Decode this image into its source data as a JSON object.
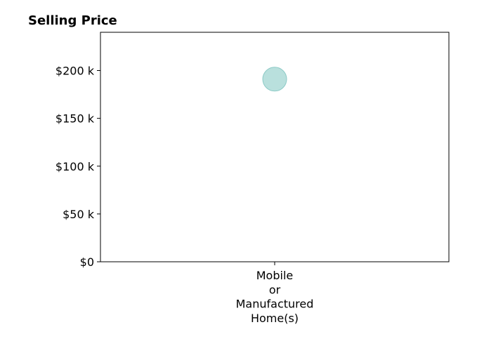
{
  "chart_data": {
    "type": "scatter",
    "title": "Selling Price",
    "xlabel": "",
    "ylabel": "",
    "categories": [
      "Mobile\nor\nManufactured\nHome(s)"
    ],
    "series": [
      {
        "values": [
          191000
        ],
        "color": "#a8d8d5",
        "edge_color": "#8ccac6"
      }
    ],
    "ylim": [
      0,
      240000
    ],
    "yticks": [
      0,
      50000,
      100000,
      150000,
      200000
    ],
    "ytick_labels": [
      "$0",
      "$50 k",
      "$100 k",
      "$150 k",
      "$200 k"
    ],
    "grid": false,
    "legend": "none"
  }
}
